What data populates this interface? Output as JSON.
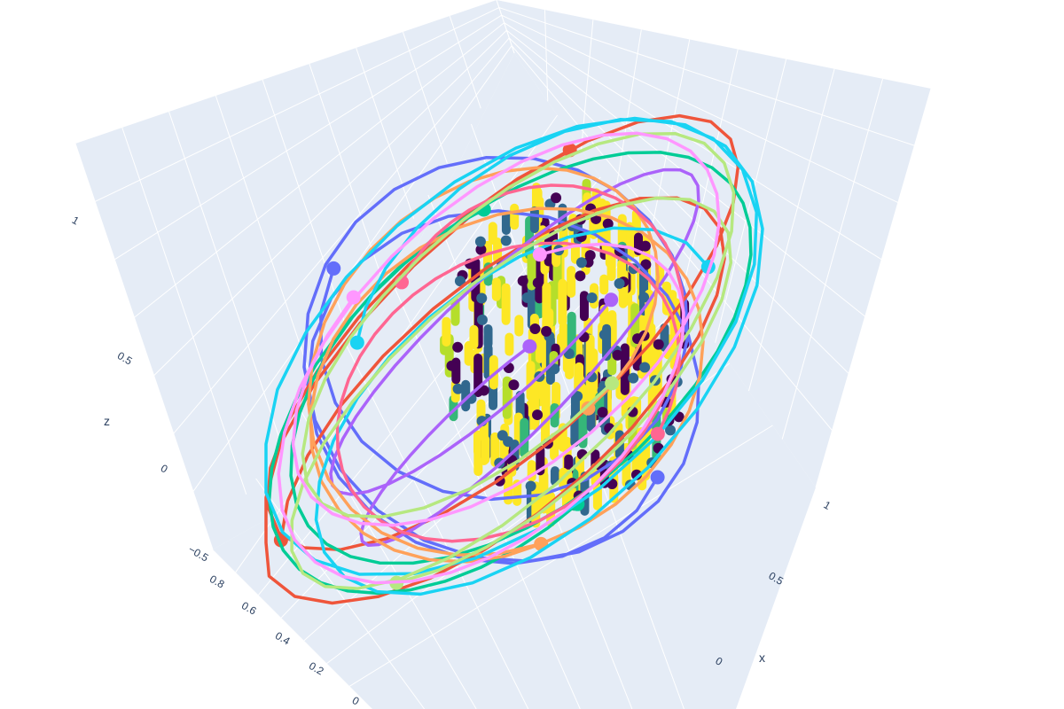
{
  "chart_data": {
    "type": "3d-scatter-line",
    "scene": {
      "background": "#e5ecf6",
      "grid_color": "#ffffff",
      "tick_color": "#2a3f5f",
      "axes": {
        "x": {
          "title": "x",
          "ticks": [
            "0",
            "0.5",
            "1"
          ]
        },
        "y": {
          "title": "",
          "ticks": [
            "0",
            "0.2",
            "0.4",
            "0.6",
            "0.8"
          ]
        },
        "z": {
          "title": "z",
          "ticks": [
            "−0.5",
            "0",
            "0.5",
            "1"
          ]
        }
      }
    },
    "central_cluster": {
      "description_type": "markers",
      "colorscale": [
        "#440154",
        "#31688e",
        "#35b779",
        "#b5de2b",
        "#fde725"
      ]
    },
    "trajectories": [
      {
        "color": "#636efa"
      },
      {
        "color": "#ef553b"
      },
      {
        "color": "#00cc96"
      },
      {
        "color": "#ab63fa"
      },
      {
        "color": "#ffa15a"
      },
      {
        "color": "#19d3f3"
      },
      {
        "color": "#ff6692"
      },
      {
        "color": "#b6e880"
      },
      {
        "color": "#ff97ff"
      }
    ]
  }
}
